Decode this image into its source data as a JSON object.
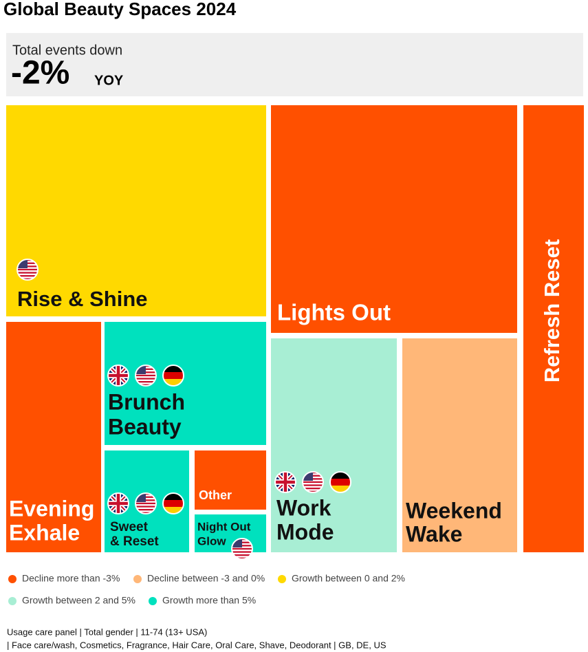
{
  "header": {
    "title": "Global Beauty Spaces 2024"
  },
  "summary": {
    "label": "Total events down",
    "value": "-2%",
    "unit": "YOY"
  },
  "tiles": [
    {
      "lines": [
        "Rise & Shine"
      ]
    },
    {
      "lines": [
        "Lights Out"
      ]
    },
    {
      "lines": [
        "Refresh Reset"
      ]
    },
    {
      "lines": [
        "Evening",
        "Exhale"
      ]
    },
    {
      "lines": [
        "Brunch",
        "Beauty"
      ]
    },
    {
      "lines": [
        "Sweet",
        "& Reset"
      ]
    },
    {
      "lines": [
        "Other"
      ]
    },
    {
      "lines": [
        "Night Out",
        "Glow"
      ]
    },
    {
      "lines": [
        "Work",
        "Mode"
      ]
    },
    {
      "lines": [
        "Weekend",
        "Wake"
      ]
    }
  ],
  "legend": [
    "Decline more than -3%",
    "Decline between -3 and 0%",
    "Growth between 0 and 2%",
    "Growth between 2 and 5%",
    "Growth more than 5%"
  ],
  "footnote": [
    "Usage care panel | Total gender | 11-74 (13+ USA)",
    "| Face care/wash, Cosmetics, Fragrance, Hair Care, Oral Care, Shave, Deodorant | GB, DE, US"
  ]
}
